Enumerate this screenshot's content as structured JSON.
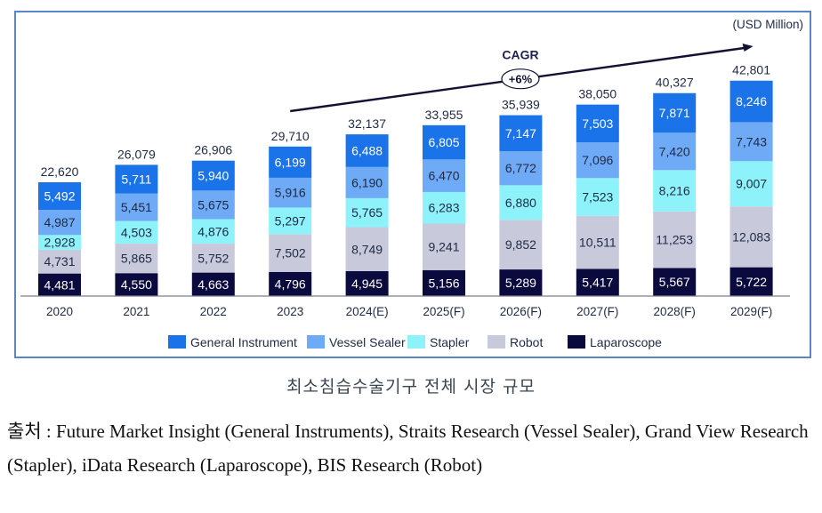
{
  "chart_data": {
    "type": "bar",
    "stacked": true,
    "title": "",
    "unit_label": "(USD Million)",
    "xlabel": "",
    "ylabel": "",
    "ylim": [
      0,
      45000
    ],
    "grid": false,
    "legend_position": "bottom",
    "categories": [
      "2020",
      "2021",
      "2022",
      "2023",
      "2024(E)",
      "2025(F)",
      "2026(F)",
      "2027(F)",
      "2028(F)",
      "2029(F)"
    ],
    "series": [
      {
        "name": "Laparoscope",
        "color": "#0b0a3e",
        "label_color": "#ffffff",
        "values": [
          4481,
          4550,
          4663,
          4796,
          4945,
          5156,
          5289,
          5417,
          5567,
          5722
        ]
      },
      {
        "name": "Robot",
        "color": "#c9c9dc",
        "label_color": "#1f2a44",
        "values": [
          4731,
          5865,
          5752,
          7502,
          8749,
          9241,
          9852,
          10511,
          11253,
          12083
        ]
      },
      {
        "name": "Stapler",
        "color": "#8ef2fb",
        "label_color": "#1f2a44",
        "values": [
          2928,
          4503,
          4876,
          5297,
          5765,
          6283,
          6880,
          7523,
          8216,
          9007
        ]
      },
      {
        "name": "Vessel Sealer",
        "color": "#6eaaf6",
        "label_color": "#1f2a44",
        "values": [
          4987,
          5451,
          5675,
          5916,
          6190,
          6470,
          6772,
          7096,
          7420,
          7743
        ]
      },
      {
        "name": "General Instrument",
        "color": "#1a73e8",
        "label_color": "#ffffff",
        "values": [
          5492,
          5711,
          5940,
          6199,
          6488,
          6805,
          7147,
          7503,
          7871,
          8246
        ]
      }
    ],
    "totals": [
      "22,620",
      "26,079",
      "26,906",
      "29,710",
      "32,137",
      "33,955",
      "35,939",
      "38,050",
      "40,327",
      "42,801"
    ],
    "legend_order": [
      "General Instrument",
      "Vessel Sealer",
      "Stapler",
      "Robot",
      "Laparoscope"
    ],
    "annotation": {
      "label": "CAGR",
      "value": "+6%",
      "from_category": "2023",
      "to_category": "2029(F)"
    }
  },
  "caption": {
    "title": "최소침습수술기구 전체 시장 규모",
    "source": "출처 : Future Market Insight (General Instruments), Straits Research (Vessel Sealer), Grand View Research (Stapler), iData Research (Laparoscope), BIS Research (Robot)"
  }
}
